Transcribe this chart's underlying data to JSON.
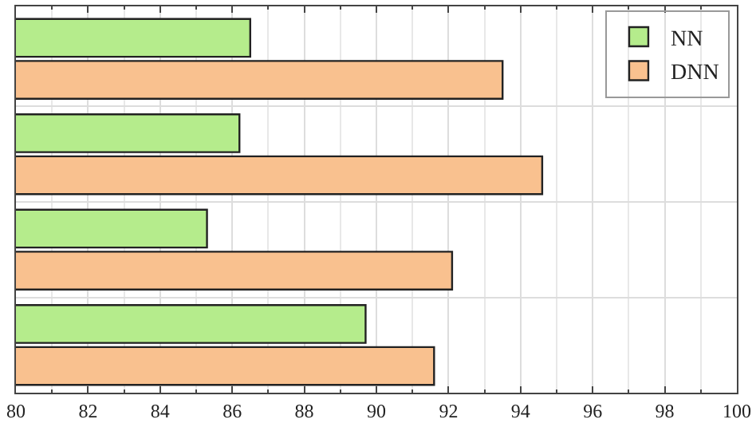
{
  "chart_data": {
    "type": "bar",
    "orientation": "horizontal",
    "categories": [
      null,
      null,
      null,
      null
    ],
    "series": [
      {
        "name": "NN",
        "color": "#b5ec8c",
        "values": [
          86.5,
          86.2,
          85.3,
          89.7
        ]
      },
      {
        "name": "DNN",
        "color": "#f9c18f",
        "values": [
          93.5,
          94.6,
          92.1,
          91.6
        ]
      }
    ],
    "xlim": [
      80,
      100
    ],
    "xticks": [
      80,
      82,
      84,
      86,
      88,
      90,
      92,
      94,
      96,
      98,
      100
    ],
    "grid": true,
    "legend": "top right"
  }
}
